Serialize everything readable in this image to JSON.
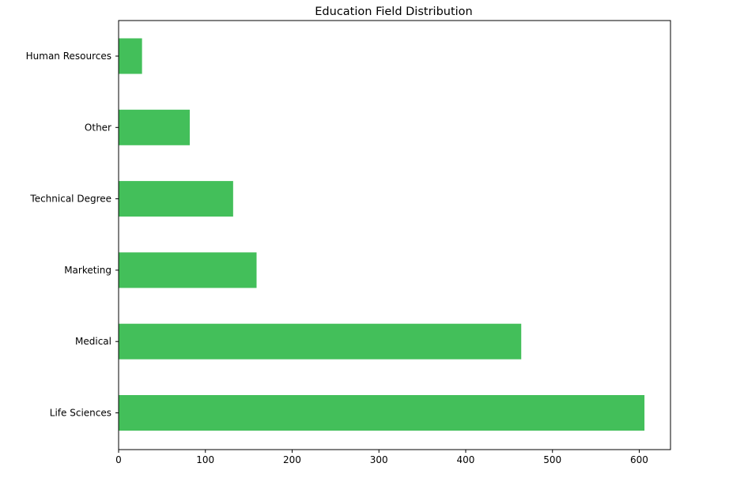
{
  "chart_data": {
    "type": "bar",
    "orientation": "horizontal",
    "title": "Education Field Distribution",
    "xlabel": "",
    "ylabel": "",
    "categories": [
      "Human Resources",
      "Other",
      "Technical Degree",
      "Marketing",
      "Medical",
      "Life Sciences"
    ],
    "values": [
      27,
      82,
      132,
      159,
      464,
      606
    ],
    "xlim": [
      0,
      636
    ],
    "xticks": [
      0,
      100,
      200,
      300,
      400,
      500,
      600
    ],
    "bar_color": "#43bf5a",
    "grid": false,
    "legend": "none"
  }
}
